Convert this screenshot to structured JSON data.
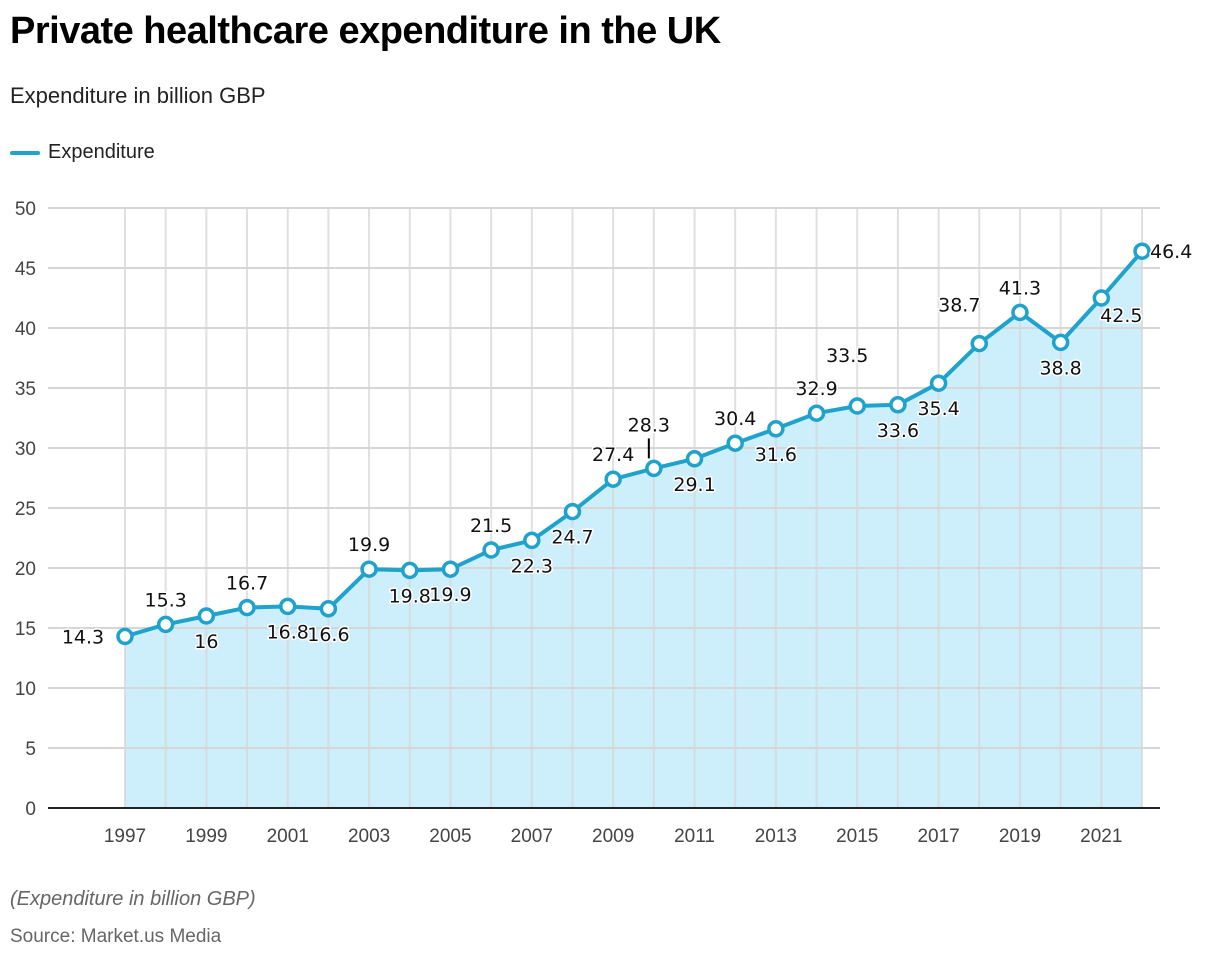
{
  "header": {
    "title": "Private healthcare expenditure in the UK",
    "subtitle": "Expenditure in billion GBP"
  },
  "legend": {
    "label": "Expenditure",
    "color": "#1fa3cd"
  },
  "footer": {
    "note": "(Expenditure in billion GBP)",
    "source": "Source: Market.us Media"
  },
  "colors": {
    "line": "#1fa3cd",
    "area": "#cdeefb",
    "grid": "#d6d6d6",
    "axis": "#222222"
  },
  "chart_data": {
    "type": "area",
    "title": "Private healthcare expenditure in the UK",
    "subtitle": "Expenditure in billion GBP",
    "xlabel": "",
    "ylabel": "",
    "ylim": [
      0,
      50
    ],
    "yticks": [
      0,
      5,
      10,
      15,
      20,
      25,
      30,
      35,
      40,
      45,
      50
    ],
    "xticks": [
      "1997",
      "1999",
      "2001",
      "2003",
      "2005",
      "2007",
      "2009",
      "2011",
      "2013",
      "2015",
      "2017",
      "2019",
      "2021"
    ],
    "grid": true,
    "legend_position": "top-left",
    "x": [
      1997,
      1998,
      1999,
      2000,
      2001,
      2002,
      2003,
      2004,
      2005,
      2006,
      2007,
      2008,
      2009,
      2010,
      2011,
      2012,
      2013,
      2014,
      2015,
      2016,
      2017,
      2018,
      2019,
      2020,
      2021,
      2022
    ],
    "series": [
      {
        "name": "Expenditure",
        "values": [
          14.3,
          15.3,
          16,
          16.7,
          16.8,
          16.6,
          19.9,
          19.8,
          19.9,
          21.5,
          22.3,
          24.7,
          27.4,
          28.3,
          29.1,
          30.4,
          31.6,
          32.9,
          33.5,
          33.6,
          35.4,
          38.7,
          41.3,
          38.8,
          42.5,
          46.4
        ],
        "labels": [
          "14.3",
          "15.3",
          "16",
          "16.7",
          "16.8",
          "16.6",
          "19.9",
          "19.8",
          "19.9",
          "21.5",
          "22.3",
          "24.7",
          "27.4",
          "28.3",
          "29.1",
          "30.4",
          "31.6",
          "32.9",
          "33.5",
          "33.6",
          "35.4",
          "38.7",
          "41.3",
          "38.8",
          "42.5",
          "46.4"
        ],
        "label_positions": [
          "left",
          "above",
          "below",
          "above",
          "below",
          "below",
          "above",
          "below",
          "below",
          "above",
          "below",
          "below",
          "above",
          "above-callout",
          "below",
          "above",
          "below",
          "above",
          "above-high",
          "below",
          "below",
          "above-left",
          "above",
          "below",
          "below-right",
          "right"
        ]
      }
    ]
  }
}
